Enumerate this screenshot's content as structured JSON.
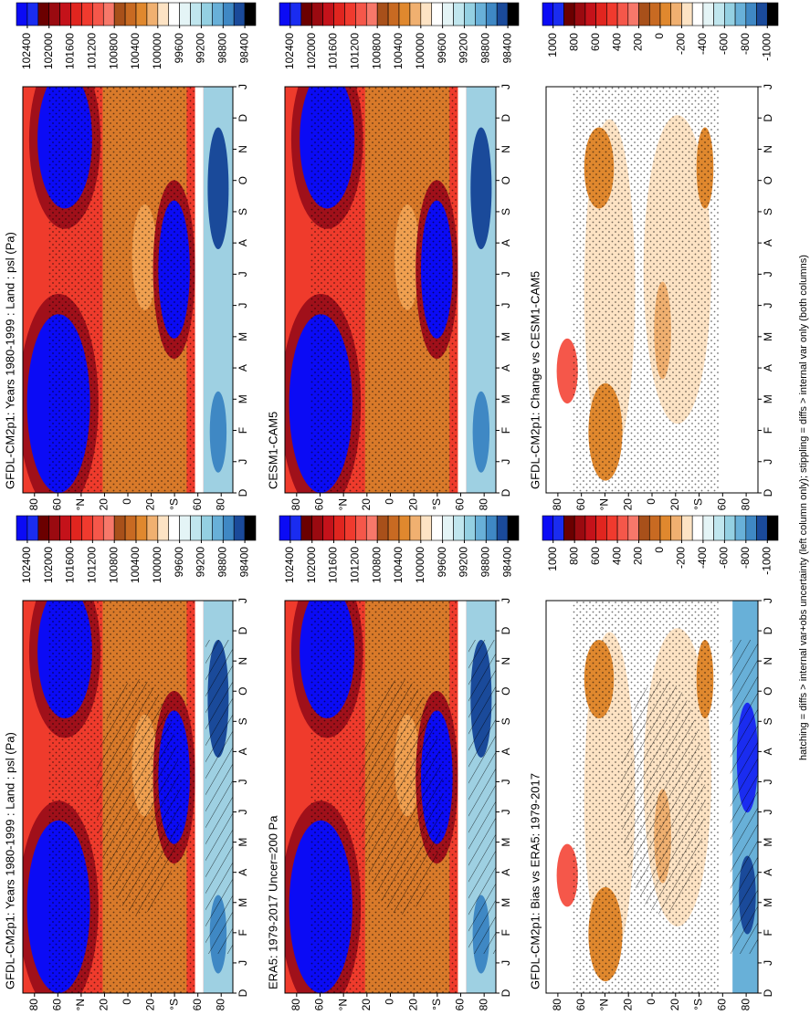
{
  "chart_data": [
    {
      "type": "contour",
      "title": "GFDL-CM2p1: Years 1980-1999 : Land : psl (Pa)",
      "categories": [
        "D",
        "J",
        "F",
        "M",
        "A",
        "M",
        "J",
        "J",
        "A",
        "S",
        "O",
        "N",
        "D",
        "J"
      ],
      "ylim": [
        90,
        -90
      ],
      "yticks": [
        80,
        60,
        {
          "value": 40,
          "label": "°N"
        },
        20,
        0,
        {
          "value": -20,
          "label": "20"
        },
        {
          "value": -40,
          "label": "°S"
        },
        {
          "value": -60,
          "label": "60"
        },
        {
          "value": -80,
          "label": "80"
        }
      ],
      "colorbar": {
        "colors": [
          "#0b0bf5",
          "#1a2cf0",
          "#6b0000",
          "#9a0a10",
          "#c4121a",
          "#e0251f",
          "#f03a2e",
          "#f5574a",
          "#f7786a",
          "#a8501a",
          "#c86a22",
          "#e0882e",
          "#f0b070",
          "#fde3c4",
          "#ffffff",
          "#e4f4f6",
          "#c0e6ee",
          "#94d0e2",
          "#68b0d8",
          "#3f88c4",
          "#1a4a9a",
          "#000000"
        ],
        "ticks": [
          102400,
          102000,
          101600,
          101200,
          100800,
          100400,
          100000,
          99600,
          99200,
          98800,
          98400
        ]
      }
    },
    {
      "type": "contour",
      "title": "GFDL-CM2p1: Years 1980-1999 : Land : psl (Pa)",
      "categories": [
        "D",
        "J",
        "F",
        "M",
        "A",
        "M",
        "J",
        "J",
        "A",
        "S",
        "O",
        "N",
        "D",
        "J"
      ],
      "ylim": [
        90,
        -90
      ],
      "yticks": [
        80,
        60,
        {
          "value": 40,
          "label": "°N"
        },
        20,
        0,
        {
          "value": -20,
          "label": "20"
        },
        {
          "value": -40,
          "label": "°S"
        },
        {
          "value": -60,
          "label": "60"
        },
        {
          "value": -80,
          "label": "80"
        }
      ],
      "colorbar": {
        "colors": [
          "#0b0bf5",
          "#1a2cf0",
          "#6b0000",
          "#9a0a10",
          "#c4121a",
          "#e0251f",
          "#f03a2e",
          "#f5574a",
          "#f7786a",
          "#a8501a",
          "#c86a22",
          "#e0882e",
          "#f0b070",
          "#fde3c4",
          "#ffffff",
          "#e4f4f6",
          "#c0e6ee",
          "#94d0e2",
          "#68b0d8",
          "#3f88c4",
          "#1a4a9a",
          "#000000"
        ],
        "ticks": [
          102400,
          102000,
          101600,
          101200,
          100800,
          100400,
          100000,
          99600,
          99200,
          98800,
          98400
        ]
      }
    },
    {
      "type": "contour",
      "title": "ERA5: 1979-2017 Uncer=200 Pa",
      "categories": [
        "D",
        "J",
        "F",
        "M",
        "A",
        "M",
        "J",
        "J",
        "A",
        "S",
        "O",
        "N",
        "D",
        "J"
      ],
      "ylim": [
        90,
        -90
      ],
      "yticks": [
        80,
        60,
        {
          "value": 40,
          "label": "°N"
        },
        20,
        0,
        {
          "value": -20,
          "label": "20"
        },
        {
          "value": -40,
          "label": "°S"
        },
        {
          "value": -60,
          "label": "60"
        },
        {
          "value": -80,
          "label": "80"
        }
      ],
      "colorbar": {
        "colors": [
          "#0b0bf5",
          "#1a2cf0",
          "#6b0000",
          "#9a0a10",
          "#c4121a",
          "#e0251f",
          "#f03a2e",
          "#f5574a",
          "#f7786a",
          "#a8501a",
          "#c86a22",
          "#e0882e",
          "#f0b070",
          "#fde3c4",
          "#ffffff",
          "#e4f4f6",
          "#c0e6ee",
          "#94d0e2",
          "#68b0d8",
          "#3f88c4",
          "#1a4a9a",
          "#000000"
        ],
        "ticks": [
          102400,
          102000,
          101600,
          101200,
          100800,
          100400,
          100000,
          99600,
          99200,
          98800,
          98400
        ]
      }
    },
    {
      "type": "contour",
      "title": "CESM1-CAM5",
      "categories": [
        "D",
        "J",
        "F",
        "M",
        "A",
        "M",
        "J",
        "J",
        "A",
        "S",
        "O",
        "N",
        "D",
        "J"
      ],
      "ylim": [
        90,
        -90
      ],
      "yticks": [
        80,
        60,
        {
          "value": 40,
          "label": "°N"
        },
        20,
        0,
        {
          "value": -20,
          "label": "20"
        },
        {
          "value": -40,
          "label": "°S"
        },
        {
          "value": -60,
          "label": "60"
        },
        {
          "value": -80,
          "label": "80"
        }
      ],
      "colorbar": {
        "colors": [
          "#0b0bf5",
          "#1a2cf0",
          "#6b0000",
          "#9a0a10",
          "#c4121a",
          "#e0251f",
          "#f03a2e",
          "#f5574a",
          "#f7786a",
          "#a8501a",
          "#c86a22",
          "#e0882e",
          "#f0b070",
          "#fde3c4",
          "#ffffff",
          "#e4f4f6",
          "#c0e6ee",
          "#94d0e2",
          "#68b0d8",
          "#3f88c4",
          "#1a4a9a",
          "#000000"
        ],
        "ticks": [
          102400,
          102000,
          101600,
          101200,
          100800,
          100400,
          100000,
          99600,
          99200,
          98800,
          98400
        ]
      }
    },
    {
      "type": "contour",
      "title": "GFDL-CM2p1: Bias vs ERA5: 1979-2017",
      "categories": [
        "D",
        "J",
        "F",
        "M",
        "A",
        "M",
        "J",
        "J",
        "A",
        "S",
        "O",
        "N",
        "D",
        "J"
      ],
      "ylim": [
        90,
        -90
      ],
      "yticks": [
        80,
        60,
        {
          "value": 40,
          "label": "°N"
        },
        20,
        0,
        {
          "value": -20,
          "label": "20"
        },
        {
          "value": -40,
          "label": "°S"
        },
        {
          "value": -60,
          "label": "60"
        },
        {
          "value": -80,
          "label": "80"
        }
      ],
      "colorbar": {
        "colors": [
          "#0b0bf5",
          "#1a2cf0",
          "#6b0000",
          "#9a0a10",
          "#c4121a",
          "#e0251f",
          "#f03a2e",
          "#f5574a",
          "#f7786a",
          "#a8501a",
          "#c86a22",
          "#e0882e",
          "#f0b070",
          "#fde3c4",
          "#ffffff",
          "#e4f4f6",
          "#c0e6ee",
          "#94d0e2",
          "#68b0d8",
          "#3f88c4",
          "#1a4a9a",
          "#000000"
        ],
        "ticks": [
          1000,
          800,
          600,
          400,
          200,
          0,
          -200,
          -400,
          -600,
          -800,
          -1000
        ]
      }
    },
    {
      "type": "contour",
      "title": "GFDL-CM2p1: Change vs CESM1-CAM5",
      "categories": [
        "D",
        "J",
        "F",
        "M",
        "A",
        "M",
        "J",
        "J",
        "A",
        "S",
        "O",
        "N",
        "D",
        "J"
      ],
      "ylim": [
        90,
        -90
      ],
      "yticks": [
        80,
        60,
        {
          "value": 40,
          "label": "°N"
        },
        20,
        0,
        {
          "value": -20,
          "label": "20"
        },
        {
          "value": -40,
          "label": "°S"
        },
        {
          "value": -60,
          "label": "60"
        },
        {
          "value": -80,
          "label": "80"
        }
      ],
      "colorbar": {
        "colors": [
          "#0b0bf5",
          "#1a2cf0",
          "#6b0000",
          "#9a0a10",
          "#c4121a",
          "#e0251f",
          "#f03a2e",
          "#f5574a",
          "#f7786a",
          "#a8501a",
          "#c86a22",
          "#e0882e",
          "#f0b070",
          "#fde3c4",
          "#ffffff",
          "#e4f4f6",
          "#c0e6ee",
          "#94d0e2",
          "#68b0d8",
          "#3f88c4",
          "#1a4a9a",
          "#000000"
        ],
        "ticks": [
          1000,
          800,
          600,
          400,
          200,
          0,
          -200,
          -400,
          -600,
          -800,
          -1000
        ]
      }
    }
  ],
  "footnote": "hatching = diffs > internal var+obs uncertainty (left column only); stippling = diffs > internal var only (both columns)"
}
